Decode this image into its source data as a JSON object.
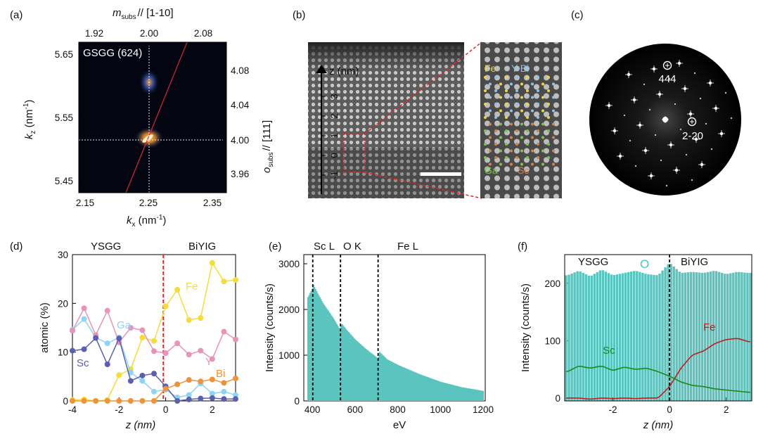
{
  "panels": {
    "a": {
      "label": "(a)",
      "title": "GSGG (624)",
      "top_axis_label": "m",
      "top_axis_sub": "subs",
      "top_axis_suffix": "// [1-10]",
      "top_ticks": [
        "1.92",
        "2.00",
        "2.08"
      ],
      "bottom_ticks": [
        "2.15",
        "2.25",
        "2.35"
      ],
      "left_ticks": [
        "5.65",
        "5.55",
        "5.45"
      ],
      "right_ticks": [
        "4.08",
        "4.04",
        "4.00",
        "3.96"
      ],
      "right_axis_label": "o",
      "right_axis_sub": "subs",
      "right_axis_suffix": "// [111]",
      "xlabel_main": "k",
      "xlabel_sub": "x",
      "xlabel_unit": " (nm",
      "xlabel_exp": "-1",
      "xlabel_close": ")",
      "ylabel_main": "k",
      "ylabel_sub": "z",
      "ylabel_unit": " (nm",
      "ylabel_exp": "-1",
      "ylabel_close": ")"
    },
    "b": {
      "label": "(b)",
      "axis_label": "z (nm)",
      "ticks": [
        "3",
        "2",
        "1",
        "0",
        "-1"
      ],
      "legend": {
        "fe": "Fe",
        "ybi": "Y-Bi",
        "ga": "Ga",
        "sc": "Sc"
      }
    },
    "c": {
      "label": "(c)",
      "spot1": "444",
      "spot2": "2-20"
    },
    "d": {
      "label": "(d)",
      "region_left": "YSGG",
      "region_right": "BiYIG",
      "xlabel": "z (nm)",
      "ylabel": "atomic (%)"
    },
    "e": {
      "label": "(e)",
      "edges": [
        "Sc L",
        "O  K",
        "Fe L"
      ],
      "xlabel": "eV",
      "ylabel": "Intensity (counts/s)"
    },
    "f": {
      "label": "(f)",
      "region_left": "YSGG",
      "region_right": "BiYIG",
      "o_label": "O",
      "xlabel": "z (nm)",
      "ylabel": "Intensity (counts/s)"
    }
  },
  "colors": {
    "fe": "#f5dc3c",
    "ga": "#8fd3f2",
    "y": "#e893b8",
    "sc": "#5a5fae",
    "bi": "#ef9238",
    "teal": "#5bc4bf",
    "fe_line": "#c21d1d",
    "sc_line": "#1a8a1a",
    "dash_red": "#e0262a"
  },
  "chart_data": [
    {
      "panel": "d",
      "type": "line",
      "xlabel": "z (nm)",
      "ylabel": "atomic (%)",
      "xlim": [
        -4,
        3
      ],
      "ylim": [
        0,
        30
      ],
      "xticks": [
        -4,
        -2,
        0,
        2
      ],
      "yticks": [
        0,
        10,
        20,
        30
      ],
      "x": [
        -4.0,
        -3.5,
        -3.0,
        -2.5,
        -2.0,
        -1.5,
        -1.0,
        -0.5,
        0.0,
        0.5,
        1.0,
        1.5,
        2.0,
        2.5,
        3.0
      ],
      "series": [
        {
          "name": "Fe",
          "values": [
            0.2,
            0.3,
            0.0,
            0.2,
            5.3,
            6.5,
            13.0,
            12.3,
            19.4,
            22.8,
            16.6,
            17.0,
            28.3,
            24.5,
            24.8
          ]
        },
        {
          "name": "Ga",
          "values": [
            14.6,
            16.8,
            13.0,
            11.8,
            13.0,
            5.8,
            4.1,
            1.9,
            2.3,
            0.7,
            1.2,
            3.6,
            1.5,
            1.9,
            1.2
          ]
        },
        {
          "name": "Y",
          "values": [
            14.4,
            19.0,
            13.5,
            18.5,
            12.0,
            15.0,
            14.5,
            10.2,
            9.8,
            11.8,
            9.5,
            10.3,
            8.6,
            14.2,
            12.6
          ]
        },
        {
          "name": "Sc",
          "values": [
            10.3,
            10.6,
            12.9,
            7.5,
            12.8,
            4.1,
            5.2,
            5.6,
            3.0,
            0.0,
            0.3,
            0.5,
            0.6,
            0.4,
            0.4
          ]
        },
        {
          "name": "Bi",
          "values": [
            0.0,
            0.0,
            0.0,
            0.0,
            0.0,
            0.0,
            0.0,
            0.0,
            2.5,
            3.4,
            4.3,
            4.0,
            4.4,
            3.7,
            4.6
          ]
        }
      ]
    },
    {
      "panel": "e",
      "type": "bar",
      "xlabel": "eV",
      "ylabel": "Intensity (counts/s)",
      "xlim": [
        360,
        1210
      ],
      "ylim": [
        0,
        3200
      ],
      "xticks": [
        400,
        600,
        800,
        1000,
        1200
      ],
      "yticks": [
        0,
        1000,
        2000,
        3000
      ],
      "edge_positions": [
        402,
        532,
        708
      ],
      "x": [
        380,
        400,
        402,
        420,
        450,
        500,
        531,
        536,
        560,
        600,
        650,
        700,
        708,
        713,
        750,
        800,
        900,
        1000,
        1100,
        1200
      ],
      "values": [
        2270,
        2450,
        2570,
        2400,
        2140,
        1800,
        1550,
        1700,
        1560,
        1350,
        1140,
        960,
        880,
        1080,
        910,
        790,
        590,
        420,
        300,
        220
      ]
    },
    {
      "panel": "f",
      "type": "bar+line",
      "xlabel": "z (nm)",
      "ylabel": "Intensity (counts/s)",
      "xlim": [
        -3.7,
        2.9
      ],
      "ylim": [
        -5,
        250
      ],
      "xticks": [
        -2,
        0,
        2
      ],
      "yticks": [
        0,
        100,
        200
      ],
      "x": [
        -3.6,
        -3.2,
        -2.8,
        -2.4,
        -2.0,
        -1.6,
        -1.2,
        -0.8,
        -0.4,
        0.0,
        0.4,
        0.8,
        1.2,
        1.6,
        2.0,
        2.4,
        2.8
      ],
      "series": [
        {
          "name": "O",
          "kind": "bar",
          "values": [
            214,
            222,
            212,
            224,
            214,
            218,
            222,
            216,
            214,
            236,
            218,
            220,
            218,
            222,
            216,
            220,
            218
          ]
        },
        {
          "name": "Fe",
          "kind": "line",
          "values": [
            0,
            0,
            -2,
            0,
            -1,
            0,
            -1,
            0,
            0,
            20,
            52,
            75,
            82,
            95,
            102,
            104,
            98
          ]
        },
        {
          "name": "Sc",
          "kind": "line",
          "values": [
            46,
            56,
            52,
            56,
            48,
            54,
            50,
            52,
            46,
            38,
            28,
            22,
            20,
            16,
            14,
            12,
            10
          ]
        }
      ]
    }
  ]
}
